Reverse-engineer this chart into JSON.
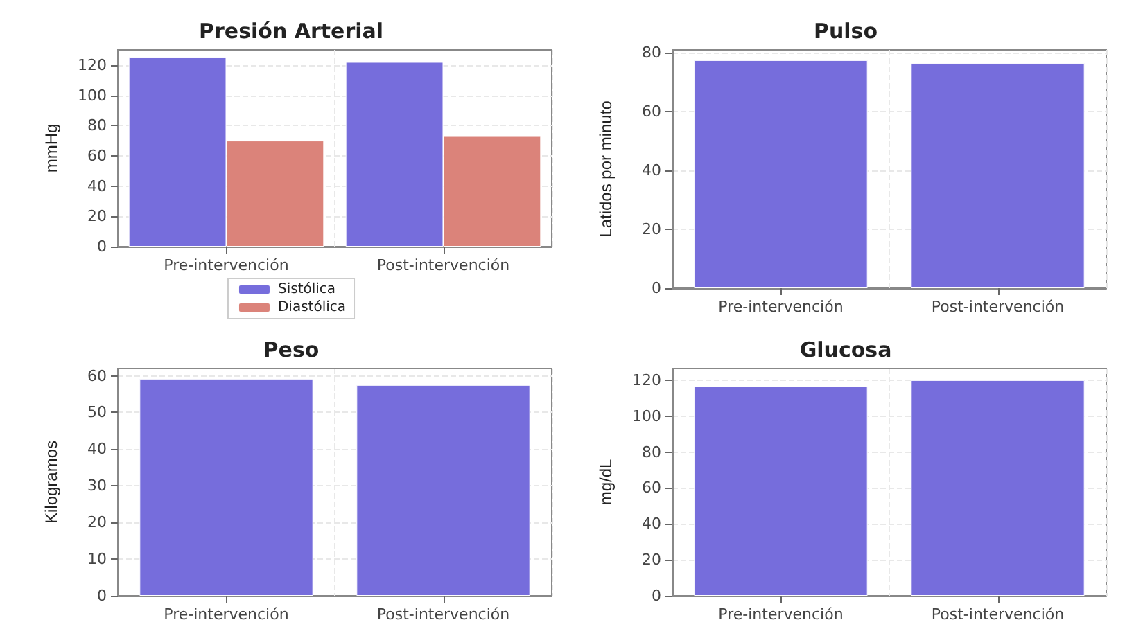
{
  "chart_data": [
    {
      "type": "bar",
      "title": "Presión Arterial",
      "ylabel": "mmHg",
      "categories": [
        "Pre-intervención",
        "Post-intervención"
      ],
      "series": [
        {
          "name": "Sistólica",
          "color": "#766ddc",
          "values": [
            125,
            122
          ]
        },
        {
          "name": "Diastólica",
          "color": "#db837a",
          "values": [
            70,
            73
          ]
        }
      ],
      "ylim": [
        0,
        130
      ],
      "yticks": [
        0,
        20,
        40,
        60,
        80,
        100,
        120
      ],
      "grid": true,
      "legend": "bottom"
    },
    {
      "type": "bar",
      "title": "Pulso",
      "ylabel": "Latidos por minuto",
      "categories": [
        "Pre-intervención",
        "Post-intervención"
      ],
      "values": [
        77.5,
        76.5
      ],
      "color": "#766ddc",
      "ylim": [
        0,
        81
      ],
      "yticks": [
        0,
        20,
        40,
        60,
        80
      ],
      "grid": true
    },
    {
      "type": "bar",
      "title": "Peso",
      "ylabel": "Kilogramos",
      "categories": [
        "Pre-intervención",
        "Post-intervención"
      ],
      "values": [
        59.2,
        57.5
      ],
      "color": "#766ddc",
      "ylim": [
        0,
        62
      ],
      "yticks": [
        0,
        10,
        20,
        30,
        40,
        50,
        60
      ],
      "grid": true
    },
    {
      "type": "bar",
      "title": "Glucosa",
      "ylabel": "mg/dL",
      "categories": [
        "Pre-intervención",
        "Post-intervención"
      ],
      "values": [
        116.6,
        120
      ],
      "color": "#766ddc",
      "ylim": [
        0,
        126.5
      ],
      "yticks": [
        0,
        20,
        40,
        60,
        80,
        100,
        120
      ],
      "grid": true
    }
  ]
}
